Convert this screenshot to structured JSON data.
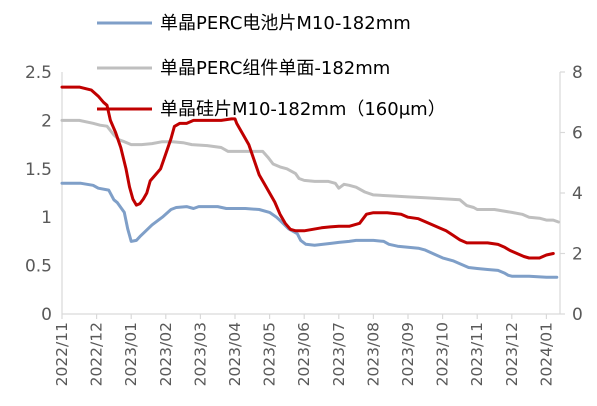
{
  "chart_data": {
    "type": "line",
    "title": "",
    "xlabel": "",
    "ylabel": "",
    "y2label": "",
    "ylim": [
      0,
      2.5
    ],
    "y2lim": [
      0,
      8
    ],
    "y_ticks": [
      "0",
      "0.5",
      "1",
      "1.5",
      "2",
      "2.5"
    ],
    "y2_ticks": [
      "0",
      "2",
      "4",
      "6",
      "8"
    ],
    "x_tick_labels": [
      "2022/11",
      "2022/12",
      "2023/01",
      "2023/02",
      "2023/03",
      "2023/04",
      "2023/05",
      "2023/06",
      "2023/07",
      "2023/08",
      "2023/09",
      "2023/10",
      "2023/11",
      "2023/12",
      "2024/01"
    ],
    "grid": false,
    "legend_position": "top",
    "x_unit": "months since 2022/11",
    "series": [
      {
        "name": "单晶PERC电池片M10-182mm",
        "axis": "left",
        "color": "#7f9fc8",
        "points": [
          [
            0.0,
            1.35
          ],
          [
            0.55,
            1.35
          ],
          [
            0.9,
            1.33
          ],
          [
            1.05,
            1.3
          ],
          [
            1.35,
            1.28
          ],
          [
            1.5,
            1.18
          ],
          [
            1.6,
            1.15
          ],
          [
            1.8,
            1.05
          ],
          [
            1.9,
            0.88
          ],
          [
            2.0,
            0.75
          ],
          [
            2.15,
            0.76
          ],
          [
            2.25,
            0.8
          ],
          [
            2.4,
            0.85
          ],
          [
            2.6,
            0.92
          ],
          [
            2.9,
            1.0
          ],
          [
            3.15,
            1.08
          ],
          [
            3.3,
            1.1
          ],
          [
            3.6,
            1.11
          ],
          [
            3.8,
            1.09
          ],
          [
            3.95,
            1.11
          ],
          [
            4.2,
            1.11
          ],
          [
            4.5,
            1.11
          ],
          [
            4.75,
            1.09
          ],
          [
            5.0,
            1.09
          ],
          [
            5.3,
            1.09
          ],
          [
            5.7,
            1.08
          ],
          [
            6.0,
            1.05
          ],
          [
            6.2,
            1.0
          ],
          [
            6.35,
            0.95
          ],
          [
            6.55,
            0.88
          ],
          [
            6.8,
            0.83
          ],
          [
            6.9,
            0.76
          ],
          [
            7.05,
            0.72
          ],
          [
            7.3,
            0.71
          ],
          [
            7.55,
            0.72
          ],
          [
            7.8,
            0.73
          ],
          [
            8.0,
            0.74
          ],
          [
            8.3,
            0.75
          ],
          [
            8.5,
            0.76
          ],
          [
            9.0,
            0.76
          ],
          [
            9.3,
            0.75
          ],
          [
            9.45,
            0.72
          ],
          [
            9.7,
            0.7
          ],
          [
            10.0,
            0.69
          ],
          [
            10.3,
            0.68
          ],
          [
            10.5,
            0.66
          ],
          [
            10.75,
            0.62
          ],
          [
            11.0,
            0.58
          ],
          [
            11.3,
            0.55
          ],
          [
            11.5,
            0.52
          ],
          [
            11.75,
            0.48
          ],
          [
            12.0,
            0.47
          ],
          [
            12.3,
            0.46
          ],
          [
            12.6,
            0.45
          ],
          [
            12.8,
            0.42
          ],
          [
            12.9,
            0.4
          ],
          [
            13.0,
            0.39
          ],
          [
            13.5,
            0.39
          ],
          [
            14.0,
            0.38
          ],
          [
            14.3,
            0.38
          ]
        ]
      },
      {
        "name": "单晶PERC组件单面-182mm",
        "axis": "left",
        "color": "#bfbfbf",
        "points": [
          [
            0.0,
            2.0
          ],
          [
            0.5,
            2.0
          ],
          [
            0.9,
            1.97
          ],
          [
            1.1,
            1.95
          ],
          [
            1.3,
            1.94
          ],
          [
            1.5,
            1.85
          ],
          [
            1.65,
            1.8
          ],
          [
            1.8,
            1.78
          ],
          [
            2.0,
            1.75
          ],
          [
            2.3,
            1.75
          ],
          [
            2.6,
            1.76
          ],
          [
            2.9,
            1.78
          ],
          [
            3.2,
            1.78
          ],
          [
            3.5,
            1.77
          ],
          [
            3.75,
            1.75
          ],
          [
            4.2,
            1.74
          ],
          [
            4.6,
            1.72
          ],
          [
            4.8,
            1.68
          ],
          [
            5.0,
            1.68
          ],
          [
            5.5,
            1.68
          ],
          [
            5.8,
            1.68
          ],
          [
            5.95,
            1.62
          ],
          [
            6.1,
            1.55
          ],
          [
            6.3,
            1.52
          ],
          [
            6.5,
            1.5
          ],
          [
            6.75,
            1.45
          ],
          [
            6.85,
            1.4
          ],
          [
            7.0,
            1.38
          ],
          [
            7.3,
            1.37
          ],
          [
            7.7,
            1.37
          ],
          [
            7.9,
            1.35
          ],
          [
            8.0,
            1.3
          ],
          [
            8.15,
            1.34
          ],
          [
            8.3,
            1.33
          ],
          [
            8.5,
            1.31
          ],
          [
            8.75,
            1.26
          ],
          [
            9.0,
            1.23
          ],
          [
            9.5,
            1.22
          ],
          [
            10.0,
            1.21
          ],
          [
            10.5,
            1.2
          ],
          [
            11.0,
            1.19
          ],
          [
            11.5,
            1.18
          ],
          [
            11.7,
            1.12
          ],
          [
            11.9,
            1.1
          ],
          [
            12.0,
            1.08
          ],
          [
            12.5,
            1.08
          ],
          [
            13.0,
            1.05
          ],
          [
            13.3,
            1.03
          ],
          [
            13.5,
            1.0
          ],
          [
            13.8,
            0.99
          ],
          [
            14.0,
            0.97
          ],
          [
            14.2,
            0.97
          ],
          [
            14.35,
            0.95
          ]
        ]
      },
      {
        "name": "单晶硅片M10-182mm（160μm）",
        "axis": "right",
        "color": "#c00000",
        "points": [
          [
            0.0,
            7.5
          ],
          [
            0.5,
            7.5
          ],
          [
            0.85,
            7.4
          ],
          [
            1.05,
            7.2
          ],
          [
            1.2,
            7.0
          ],
          [
            1.3,
            6.9
          ],
          [
            1.4,
            6.4
          ],
          [
            1.55,
            6.0
          ],
          [
            1.7,
            5.5
          ],
          [
            1.85,
            4.8
          ],
          [
            1.95,
            4.2
          ],
          [
            2.05,
            3.8
          ],
          [
            2.15,
            3.6
          ],
          [
            2.25,
            3.65
          ],
          [
            2.35,
            3.8
          ],
          [
            2.45,
            4.0
          ],
          [
            2.55,
            4.4
          ],
          [
            2.7,
            4.6
          ],
          [
            2.85,
            4.8
          ],
          [
            3.0,
            5.3
          ],
          [
            3.15,
            5.8
          ],
          [
            3.25,
            6.2
          ],
          [
            3.4,
            6.3
          ],
          [
            3.6,
            6.3
          ],
          [
            3.8,
            6.4
          ],
          [
            4.1,
            6.4
          ],
          [
            4.6,
            6.4
          ],
          [
            4.9,
            6.45
          ],
          [
            5.0,
            6.45
          ],
          [
            5.05,
            6.3
          ],
          [
            5.2,
            6.0
          ],
          [
            5.4,
            5.6
          ],
          [
            5.55,
            5.1
          ],
          [
            5.7,
            4.6
          ],
          [
            5.85,
            4.3
          ],
          [
            6.0,
            4.0
          ],
          [
            6.15,
            3.7
          ],
          [
            6.3,
            3.3
          ],
          [
            6.45,
            3.0
          ],
          [
            6.6,
            2.8
          ],
          [
            6.75,
            2.75
          ],
          [
            7.0,
            2.75
          ],
          [
            7.25,
            2.8
          ],
          [
            7.5,
            2.85
          ],
          [
            7.75,
            2.88
          ],
          [
            8.0,
            2.9
          ],
          [
            8.3,
            2.9
          ],
          [
            8.6,
            3.0
          ],
          [
            8.8,
            3.3
          ],
          [
            9.0,
            3.35
          ],
          [
            9.4,
            3.35
          ],
          [
            9.8,
            3.3
          ],
          [
            10.0,
            3.2
          ],
          [
            10.3,
            3.15
          ],
          [
            10.6,
            3.0
          ],
          [
            10.9,
            2.85
          ],
          [
            11.1,
            2.75
          ],
          [
            11.3,
            2.6
          ],
          [
            11.5,
            2.45
          ],
          [
            11.7,
            2.35
          ],
          [
            12.0,
            2.35
          ],
          [
            12.3,
            2.35
          ],
          [
            12.6,
            2.3
          ],
          [
            12.8,
            2.2
          ],
          [
            12.95,
            2.1
          ],
          [
            13.15,
            2.0
          ],
          [
            13.35,
            1.9
          ],
          [
            13.5,
            1.85
          ],
          [
            13.8,
            1.85
          ],
          [
            14.0,
            1.95
          ],
          [
            14.2,
            2.0
          ]
        ]
      }
    ]
  }
}
